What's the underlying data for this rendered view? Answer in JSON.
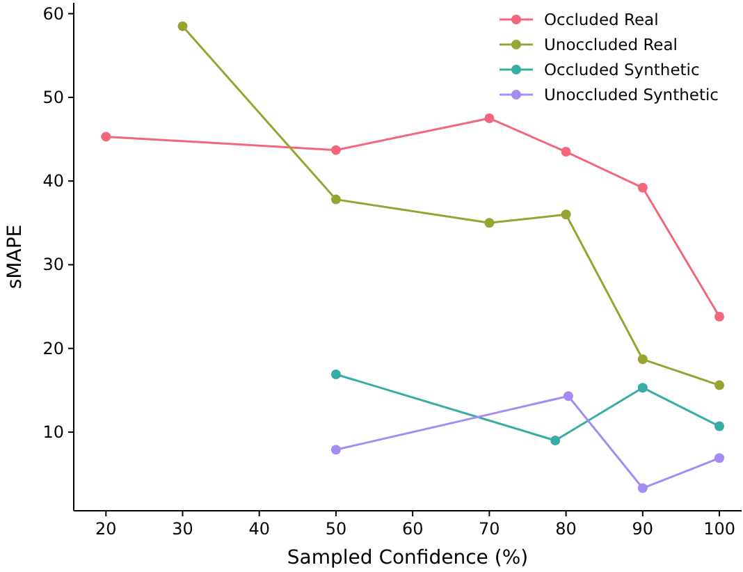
{
  "chart_data": {
    "type": "line",
    "xlabel": "Sampled Confidence (%)",
    "ylabel": "sMAPE",
    "xlim": [
      15.8,
      102.9
    ],
    "ylim": [
      0.6,
      61.3
    ],
    "xticks": [
      20,
      30,
      40,
      50,
      60,
      70,
      80,
      90,
      100
    ],
    "yticks": [
      10,
      20,
      30,
      40,
      50,
      60
    ],
    "marker": "circle",
    "line_style": "solid",
    "grid": false,
    "legend": "top right",
    "series": [
      {
        "name": "Occluded Real",
        "color": "#f2677a",
        "x": [
          20,
          50,
          70,
          80,
          90,
          100
        ],
        "values": [
          45.3,
          43.7,
          47.5,
          43.5,
          39.2,
          23.8
        ]
      },
      {
        "name": "Unoccluded Real",
        "color": "#97a432",
        "x": [
          30,
          50,
          70,
          80,
          90,
          100
        ],
        "values": [
          58.5,
          37.8,
          35,
          36,
          18.7,
          15.6
        ]
      },
      {
        "name": "Occluded Synthetic",
        "color": "#36ada4",
        "x": [
          50,
          78.6,
          90,
          100
        ],
        "values": [
          16.9,
          9,
          15.3,
          10.7
        ]
      },
      {
        "name": "Unoccluded Synthetic",
        "color": "#a48cf4",
        "x": [
          50,
          80.3,
          90,
          100
        ],
        "values": [
          7.9,
          14.3,
          3.3,
          6.9
        ]
      }
    ]
  }
}
